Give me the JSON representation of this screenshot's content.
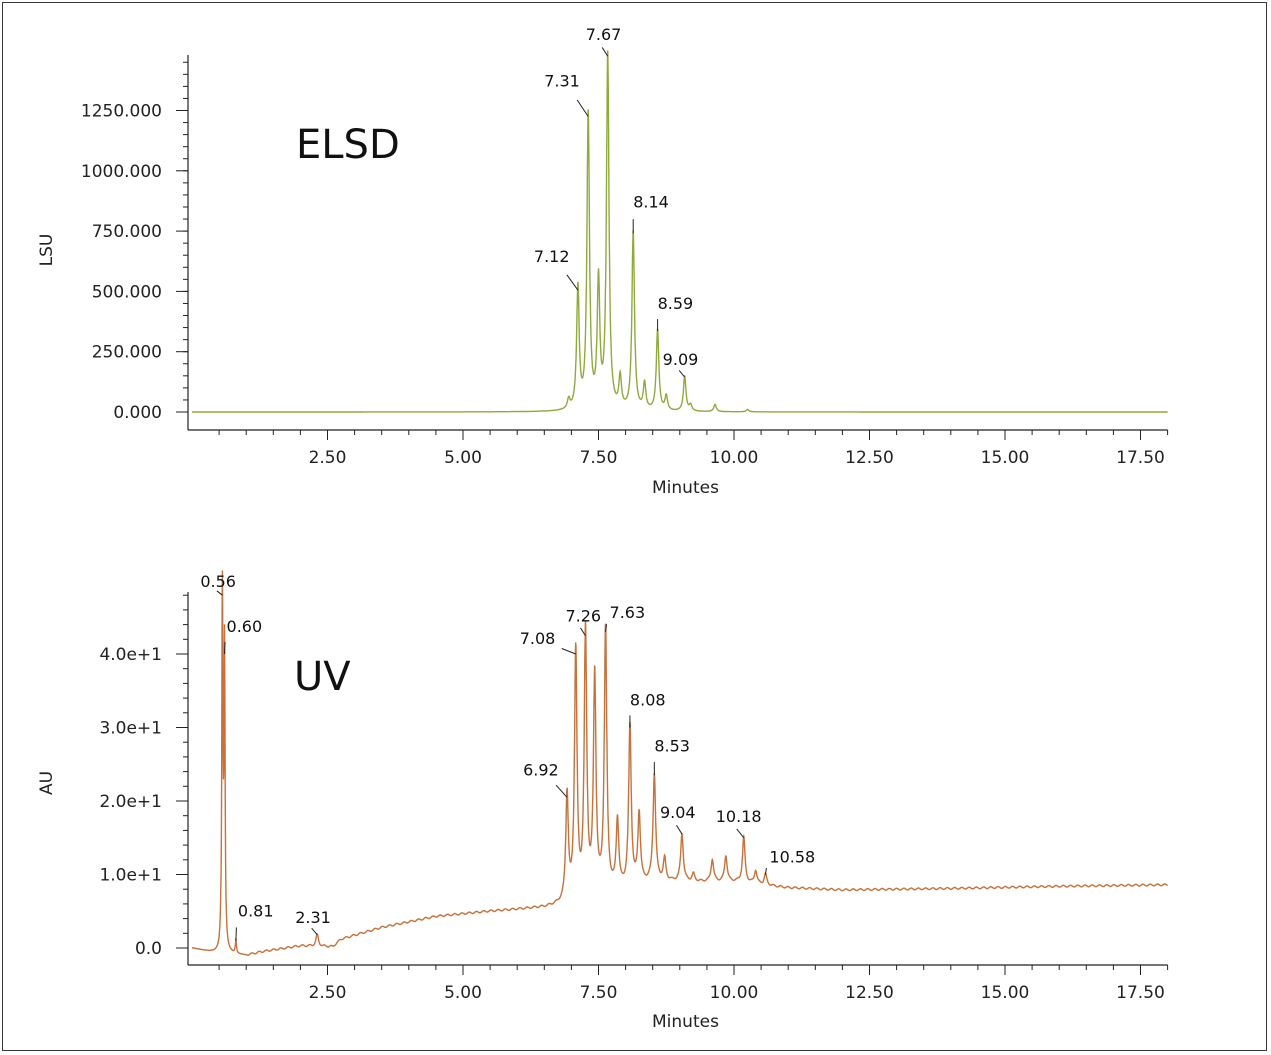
{
  "chart_data": [
    {
      "type": "line",
      "panel_title": "ELSD",
      "color": "#8faa3c",
      "xlabel": "Minutes",
      "ylabel": "LSU",
      "xlim": [
        0,
        18
      ],
      "ylim": [
        -75,
        1475
      ],
      "x_ticks": [
        "2.50",
        "5.00",
        "7.50",
        "10.00",
        "12.50",
        "15.00",
        "17.50"
      ],
      "y_ticks": [
        "0.000",
        "250.000",
        "500.000",
        "750.000",
        "1000.000",
        "1250.000"
      ],
      "peaks": [
        {
          "label": "7.12",
          "x": 7.12,
          "y": 505
        },
        {
          "label": "7.31",
          "x": 7.31,
          "y": 1225
        },
        {
          "label": "7.67",
          "x": 7.67,
          "y": 1475
        },
        {
          "label": "8.14",
          "x": 8.14,
          "y": 740
        },
        {
          "label": "8.59",
          "x": 8.59,
          "y": 335
        },
        {
          "label": "9.09",
          "x": 9.09,
          "y": 145
        }
      ],
      "extra_peaks": [
        {
          "x": 6.95,
          "y": 40
        },
        {
          "x": 7.5,
          "y": 525
        },
        {
          "x": 7.9,
          "y": 130
        },
        {
          "x": 8.35,
          "y": 110
        },
        {
          "x": 8.75,
          "y": 60
        },
        {
          "x": 9.2,
          "y": 25
        },
        {
          "x": 9.65,
          "y": 30
        },
        {
          "x": 10.25,
          "y": 10
        }
      ],
      "baseline": [
        [
          0,
          0
        ],
        [
          18,
          0
        ]
      ]
    },
    {
      "type": "line",
      "panel_title": "UV",
      "color": "#c8713a",
      "xlabel": "Minutes",
      "ylabel": "AU",
      "xlim": [
        0,
        18
      ],
      "ylim": [
        -2.5,
        48
      ],
      "x_ticks": [
        "2.50",
        "5.00",
        "7.50",
        "10.00",
        "12.50",
        "15.00",
        "17.50"
      ],
      "y_ticks": [
        "0.0",
        "1.0e+1",
        "2.0e+1",
        "3.0e+1",
        "4.0e+1"
      ],
      "peaks": [
        {
          "label": "0.56",
          "x": 0.56,
          "y": 48
        },
        {
          "label": "0.60",
          "x": 0.6,
          "y": 40
        },
        {
          "label": "0.81",
          "x": 0.81,
          "y": 1.0
        },
        {
          "label": "2.31",
          "x": 2.31,
          "y": 1.8
        },
        {
          "label": "6.92",
          "x": 6.92,
          "y": 20.5
        },
        {
          "label": "7.08",
          "x": 7.08,
          "y": 40
        },
        {
          "label": "7.26",
          "x": 7.26,
          "y": 42.5
        },
        {
          "label": "7.63",
          "x": 7.63,
          "y": 43
        },
        {
          "label": "8.08",
          "x": 8.08,
          "y": 30
        },
        {
          "label": "8.53",
          "x": 8.53,
          "y": 23.5
        },
        {
          "label": "9.04",
          "x": 9.04,
          "y": 15.5
        },
        {
          "label": "10.18",
          "x": 10.18,
          "y": 15
        },
        {
          "label": "10.58",
          "x": 10.58,
          "y": 10
        }
      ],
      "extra_peaks": [
        {
          "x": 7.43,
          "y": 36.5
        },
        {
          "x": 7.85,
          "y": 17
        },
        {
          "x": 8.25,
          "y": 18
        },
        {
          "x": 8.72,
          "y": 12
        },
        {
          "x": 9.25,
          "y": 10
        },
        {
          "x": 9.6,
          "y": 12
        },
        {
          "x": 9.85,
          "y": 12.5
        },
        {
          "x": 10.4,
          "y": 10.5
        }
      ],
      "baseline": [
        [
          0,
          0
        ],
        [
          0.5,
          -0.8
        ],
        [
          0.7,
          -0.8
        ],
        [
          1.0,
          -1.0
        ],
        [
          1.3,
          -0.5
        ],
        [
          2.0,
          0.3
        ],
        [
          2.6,
          0.2
        ],
        [
          2.75,
          1.2
        ],
        [
          3.5,
          2.8
        ],
        [
          4.5,
          4.3
        ],
        [
          5.5,
          5.0
        ],
        [
          6.5,
          5.5
        ],
        [
          6.8,
          5.8
        ],
        [
          7.0,
          6.0
        ],
        [
          8.5,
          9.0
        ],
        [
          10.0,
          9.0
        ],
        [
          11.0,
          8.2
        ],
        [
          12.0,
          7.9
        ],
        [
          14.0,
          8.1
        ],
        [
          16.0,
          8.4
        ],
        [
          18.0,
          8.6
        ]
      ]
    }
  ]
}
